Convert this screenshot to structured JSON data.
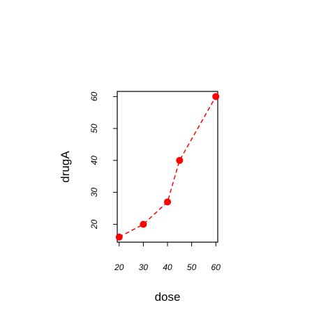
{
  "chart_data": {
    "type": "line",
    "title": "",
    "xlabel": "dose",
    "ylabel": "drugA",
    "x": [
      20,
      30,
      40,
      45,
      60
    ],
    "series": [
      {
        "values": [
          16,
          20,
          27,
          40,
          60
        ],
        "color": "#ff0000",
        "line_style": "dashed",
        "marker": "filled-circle"
      }
    ],
    "xlim": [
      19.2,
      60.8
    ],
    "ylim": [
      14.4,
      61.6
    ],
    "xticks": [
      20,
      30,
      40,
      50,
      60
    ],
    "yticks": [
      20,
      30,
      40,
      50,
      60
    ],
    "grid": false,
    "legend": "none"
  }
}
